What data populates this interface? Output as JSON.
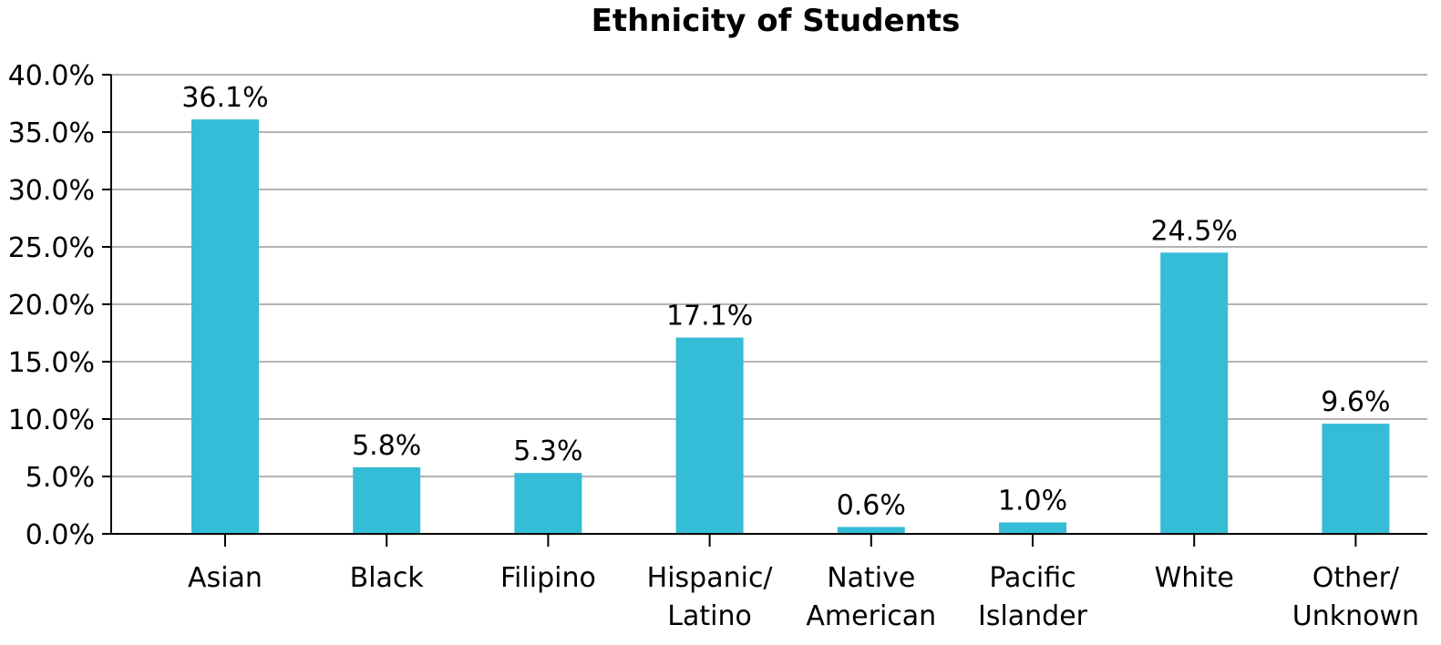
{
  "chart_data": {
    "type": "bar",
    "title": "Ethnicity of Students",
    "xlabel": "",
    "ylabel": "",
    "categories": [
      [
        "Asian"
      ],
      [
        "Black"
      ],
      [
        "Filipino"
      ],
      [
        "Hispanic/",
        "Latino"
      ],
      [
        "Native",
        "American"
      ],
      [
        "Pacific",
        "Islander"
      ],
      [
        "White"
      ],
      [
        "Other/",
        "Unknown"
      ]
    ],
    "values": [
      36.1,
      5.8,
      5.3,
      17.1,
      0.6,
      1.0,
      24.5,
      9.6
    ],
    "data_labels": [
      "36.1%",
      "5.8%",
      "5.3%",
      "17.1%",
      "0.6%",
      "1.0%",
      "24.5%",
      "9.6%"
    ],
    "ylim": [
      0,
      40
    ],
    "yticks": [
      0,
      5,
      10,
      15,
      20,
      25,
      30,
      35,
      40
    ],
    "ytick_labels": [
      "0.0%",
      "5.0%",
      "10.0%",
      "15.0%",
      "20.0%",
      "25.0%",
      "30.0%",
      "35.0%",
      "40.0%"
    ],
    "grid": true,
    "legend": "none",
    "bar_color": "#35bcd7"
  }
}
